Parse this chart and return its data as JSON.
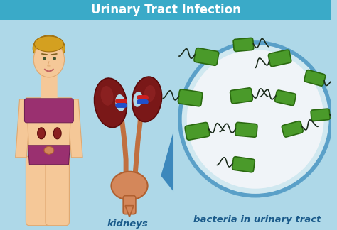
{
  "title": "Urinary Tract Infection",
  "title_bg": "#3aaac8",
  "title_color": "white",
  "bg_color": "#aed8e8",
  "label_kidneys": "kidneys",
  "label_bacteria": "bacteria in urinary tract",
  "label_color": "#1a5a8a",
  "kidney_dark": "#5a0a0a",
  "kidney_mid": "#7a1818",
  "kidney_light": "#9a2828",
  "bladder_color": "#d4875a",
  "bladder_edge": "#b06030",
  "ureter_color": "#c07040",
  "circle_bg_inner": "#f0f4f8",
  "circle_bg_outer": "#d0e8f0",
  "circle_border": "#5aA0c8",
  "zoom_blue": "#3080b8",
  "bacteria_fill": "#4a9a2a",
  "bacteria_edge": "#2a6a10",
  "tail_color": "#1a2a1a",
  "body_skin": "#f5c898",
  "body_skin_shadow": "#e0a870",
  "hair_color": "#d4a020",
  "hair_dark": "#a07010",
  "bra_color": "#9a3070",
  "underwear_color": "#9a3070",
  "connector_red": "#cc2020",
  "connector_blue": "#2050cc",
  "bacteria_positions": [
    [
      295,
      80,
      22,
      10,
      -30,
      "r"
    ],
    [
      345,
      65,
      19,
      5,
      25,
      "l"
    ],
    [
      395,
      85,
      18,
      -10,
      30,
      "r"
    ],
    [
      445,
      105,
      17,
      15,
      -25,
      "l"
    ],
    [
      275,
      130,
      20,
      -5,
      35,
      "r"
    ],
    [
      340,
      125,
      18,
      10,
      -30,
      "l"
    ],
    [
      400,
      130,
      17,
      -15,
      28,
      "r"
    ],
    [
      455,
      150,
      16,
      5,
      -32,
      "l"
    ],
    [
      285,
      175,
      21,
      15,
      -35,
      "r"
    ],
    [
      350,
      175,
      19,
      -8,
      30,
      "l"
    ],
    [
      415,
      175,
      17,
      12,
      -28,
      "r"
    ],
    [
      345,
      225,
      20,
      -5,
      32,
      "r"
    ]
  ]
}
